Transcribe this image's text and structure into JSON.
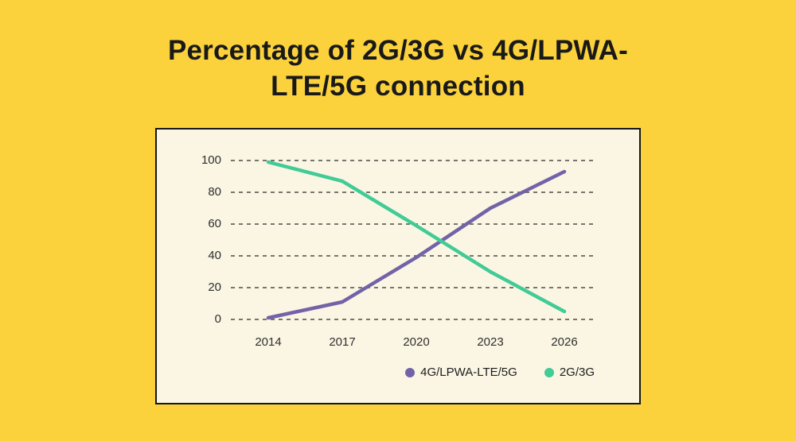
{
  "page": {
    "background_color": "#FBD23C",
    "panel_background_color": "#FBF6E3",
    "panel_border_color": "#161616",
    "gridline_color": "#76766D",
    "axis_text_color": "#2E2E2E"
  },
  "title": {
    "lines": [
      "Percentage of 2G/3G vs 4G/LPWA-",
      "LTE/5G connection"
    ]
  },
  "chart_data": {
    "type": "line",
    "title": "Percentage of 2G/3G vs 4G/LPWA-LTE/5G connection",
    "categories": [
      "2014",
      "2017",
      "2020",
      "2023",
      "2026"
    ],
    "series": [
      {
        "name": "4G/LPWA-LTE/5G",
        "color": "#7263A8",
        "values": [
          1,
          11,
          39,
          70,
          93
        ]
      },
      {
        "name": "2G/3G",
        "color": "#41CB96",
        "values": [
          99,
          87,
          59,
          30,
          5
        ]
      }
    ],
    "xlabel": "",
    "ylabel": "",
    "ylim": [
      0,
      100
    ],
    "yticks": [
      100,
      80,
      60,
      40,
      20,
      0
    ],
    "grid": "horizontal-dashed",
    "legend_position": "bottom-right"
  }
}
